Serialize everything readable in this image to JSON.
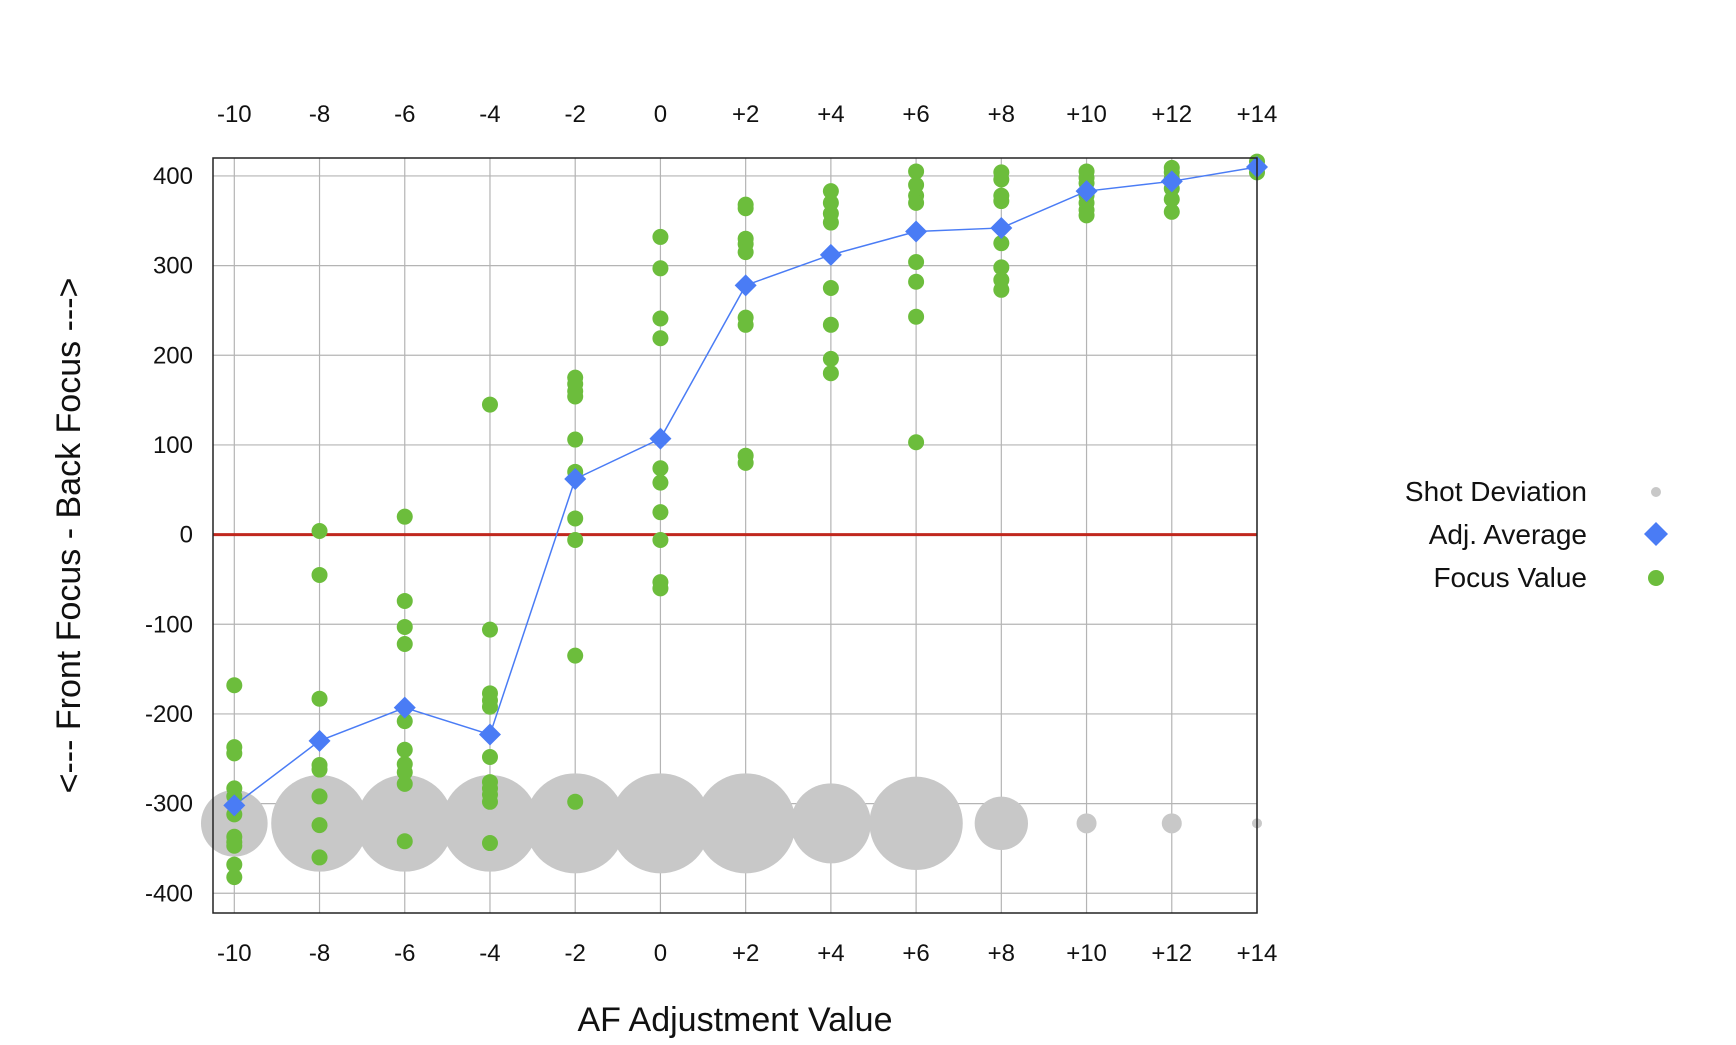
{
  "chart_data": {
    "type": "scatter",
    "title": "",
    "xlabel": "AF Adjustment Value",
    "ylabel": "<--- Front Focus - Back Focus --->",
    "x_ticks": [
      "-10",
      "-8",
      "-6",
      "-4",
      "-2",
      "0",
      "+2",
      "+4",
      "+6",
      "+8",
      "+10",
      "+12",
      "+14"
    ],
    "x_tick_values": [
      -10,
      -8,
      -6,
      -4,
      -2,
      0,
      2,
      4,
      6,
      8,
      10,
      12,
      14
    ],
    "y_ticks": [
      "400",
      "300",
      "200",
      "100",
      "0",
      "-100",
      "-200",
      "-300",
      "-400"
    ],
    "y_tick_values": [
      400,
      300,
      200,
      100,
      0,
      -100,
      -200,
      -300,
      -400
    ],
    "xlim": [
      -10.5,
      14
    ],
    "ylim": [
      -422,
      420
    ],
    "grid": true,
    "x_ticks_top_and_bottom": true,
    "reference_line": {
      "y": 0,
      "color": "#c0281e"
    },
    "legend_position": "right",
    "legend": [
      {
        "label": "Shot Deviation",
        "marker": "small-grey-circle",
        "color": "#c8c8c8"
      },
      {
        "label": "Adj. Average",
        "marker": "blue-diamond",
        "color": "#4a7cf5"
      },
      {
        "label": "Focus Value",
        "marker": "green-circle",
        "color": "#6cbd3c"
      }
    ],
    "series": [
      {
        "name": "Shot Deviation",
        "color": "#c8c8c8",
        "y": -322,
        "points": [
          {
            "x": -10,
            "size": 40
          },
          {
            "x": -8,
            "size": 58
          },
          {
            "x": -6,
            "size": 58
          },
          {
            "x": -4,
            "size": 58
          },
          {
            "x": -2,
            "size": 60
          },
          {
            "x": 0,
            "size": 60
          },
          {
            "x": 2,
            "size": 60
          },
          {
            "x": 4,
            "size": 48
          },
          {
            "x": 6,
            "size": 56
          },
          {
            "x": 8,
            "size": 32
          },
          {
            "x": 10,
            "size": 12
          },
          {
            "x": 12,
            "size": 12
          },
          {
            "x": 14,
            "size": 6
          }
        ]
      },
      {
        "name": "Adj. Average",
        "color": "#4a7cf5",
        "points": [
          {
            "x": -10,
            "y": -302
          },
          {
            "x": -8,
            "y": -230
          },
          {
            "x": -6,
            "y": -193
          },
          {
            "x": -4,
            "y": -223
          },
          {
            "x": -2,
            "y": 62
          },
          {
            "x": 0,
            "y": 107
          },
          {
            "x": 2,
            "y": 278
          },
          {
            "x": 4,
            "y": 312
          },
          {
            "x": 6,
            "y": 338
          },
          {
            "x": 8,
            "y": 342
          },
          {
            "x": 10,
            "y": 383
          },
          {
            "x": 12,
            "y": 394
          },
          {
            "x": 14,
            "y": 410
          }
        ]
      },
      {
        "name": "Focus Value",
        "color": "#6cbd3c",
        "groups": [
          {
            "x": -10,
            "y": [
              -168,
              -237,
              -244,
              -283,
              -292,
              -312,
              -337,
              -343,
              -347,
              -368,
              -382
            ]
          },
          {
            "x": -8,
            "y": [
              4,
              -45,
              -183,
              -257,
              -262,
              -292,
              -324,
              -360
            ]
          },
          {
            "x": -6,
            "y": [
              20,
              -74,
              -103,
              -122,
              -208,
              -240,
              -256,
              -265,
              -278,
              -342
            ]
          },
          {
            "x": -4,
            "y": [
              145,
              -106,
              -177,
              -185,
              -192,
              -248,
              -276,
              -283,
              -290,
              -298,
              -344
            ]
          },
          {
            "x": -2,
            "y": [
              175,
              168,
              160,
              154,
              106,
              70,
              18,
              -6,
              -135,
              -298
            ]
          },
          {
            "x": 0,
            "y": [
              332,
              297,
              241,
              219,
              74,
              58,
              25,
              -6,
              -53,
              -60
            ]
          },
          {
            "x": 2,
            "y": [
              368,
              364,
              330,
              324,
              315,
              242,
              234,
              88,
              80
            ]
          },
          {
            "x": 4,
            "y": [
              383,
              370,
              358,
              348,
              275,
              234,
              196,
              180
            ]
          },
          {
            "x": 6,
            "y": [
              405,
              390,
              378,
              370,
              304,
              282,
              243,
              103
            ]
          },
          {
            "x": 8,
            "y": [
              404,
              396,
              378,
              372,
              325,
              298,
              284,
              273
            ]
          },
          {
            "x": 10,
            "y": [
              405,
              398,
              392,
              378,
              370,
              362,
              356
            ]
          },
          {
            "x": 12,
            "y": [
              409,
              404,
              397,
              386,
              374,
              360
            ]
          },
          {
            "x": 14,
            "y": [
              416,
              410,
              404
            ]
          }
        ]
      }
    ]
  }
}
